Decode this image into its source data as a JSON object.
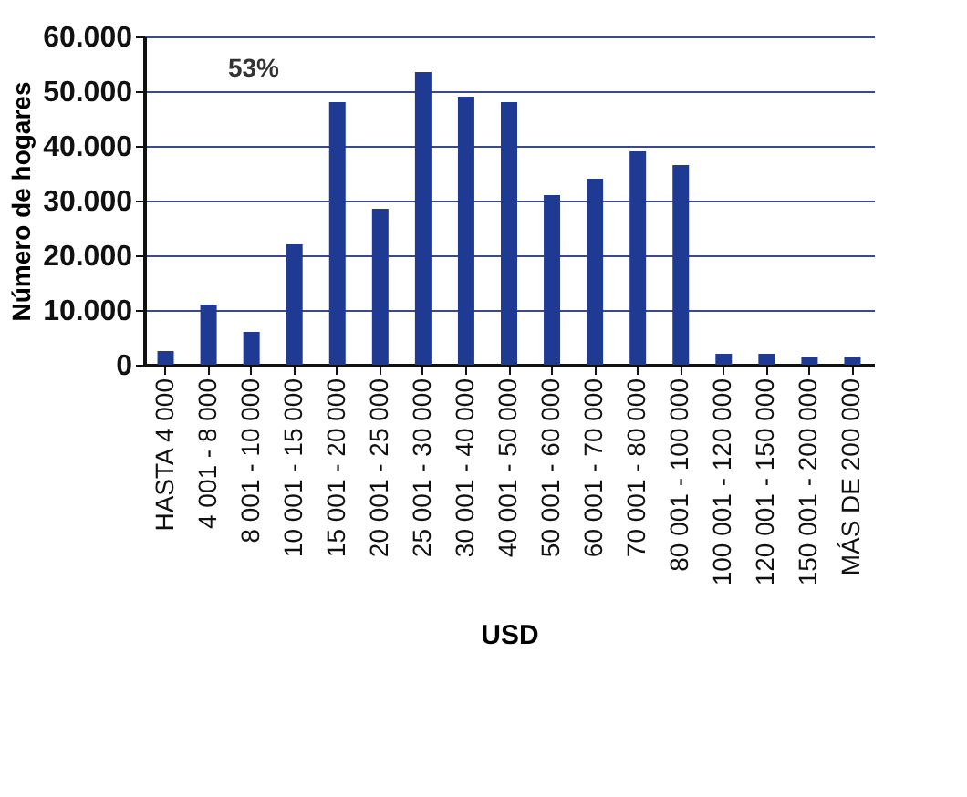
{
  "chart_data": {
    "type": "bar",
    "xlabel": "USD",
    "ylabel": "Número de hogares",
    "categories": [
      "HASTA 4 000",
      "4 001 - 8 000",
      "8 001 - 10 000",
      "10 001 - 15 000",
      "15 001 - 20 000",
      "20 001 - 25 000",
      "25 001 - 30 000",
      "30 001 - 40 000",
      "40 001 - 50 000",
      "50 001 - 60 000",
      "60 001 - 70 000",
      "70 001 - 80 000",
      "80 001 - 100 000",
      "100 001 - 120 000",
      "120 001 - 150 000",
      "150 001 - 200 000",
      "MÁS DE 200 000"
    ],
    "values": [
      2500,
      11000,
      6000,
      22000,
      48000,
      28500,
      53500,
      49000,
      48000,
      31000,
      34000,
      39000,
      36500,
      2000,
      2000,
      1500,
      1500
    ],
    "color": "#1f3a93",
    "ylim": [
      0,
      60000
    ],
    "yticks": [
      {
        "value": 0,
        "label": "0"
      },
      {
        "value": 10000,
        "label": "10.000"
      },
      {
        "value": 20000,
        "label": "20.000"
      },
      {
        "value": 30000,
        "label": "30.000"
      },
      {
        "value": 40000,
        "label": "40.000"
      },
      {
        "value": 50000,
        "label": "50.000"
      },
      {
        "value": 60000,
        "label": "60.000"
      }
    ],
    "grid": "y",
    "annotations": [
      "53%"
    ]
  }
}
